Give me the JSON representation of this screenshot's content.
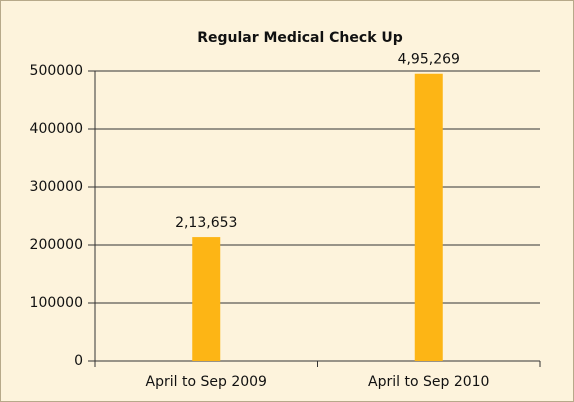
{
  "chart_data": {
    "type": "bar",
    "title": "Regular Medical Check Up",
    "categories": [
      "April to Sep 2009",
      "April to Sep 2010"
    ],
    "values": [
      213653,
      495269
    ],
    "value_labels": [
      "2,13,653",
      "4,95,269"
    ],
    "color": "#fdb515",
    "ylim": [
      0,
      500000
    ],
    "yticks": [
      0,
      100000,
      200000,
      300000,
      400000,
      500000
    ],
    "grid": true
  }
}
